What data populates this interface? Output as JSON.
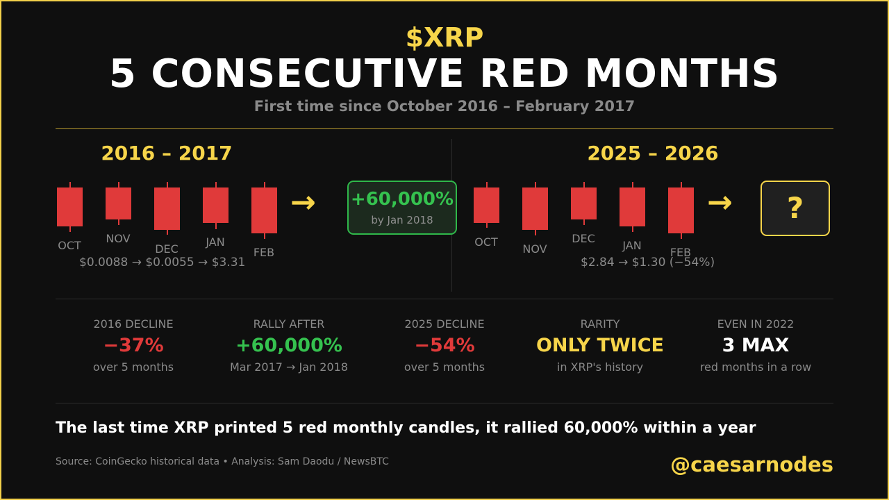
{
  "header": {
    "ticker": "$XRP",
    "title": "5 CONSECUTIVE RED MONTHS",
    "subtitle": "First time since October 2016 – February 2017"
  },
  "left_panel": {
    "period": "2016 – 2017",
    "months": [
      "OCT",
      "NOV",
      "DEC",
      "JAN",
      "FEB"
    ],
    "price_path": "$0.0088 → $0.0055 → $3.31",
    "result_value": "+60,000%",
    "result_caption": "by Jan 2018",
    "result_color": "#35c24f"
  },
  "right_panel": {
    "period": "2025 – 2026",
    "months": [
      "OCT",
      "NOV",
      "DEC",
      "JAN",
      "FEB"
    ],
    "price_path": "$2.84 → $1.30  (−54%)",
    "result_value": "?"
  },
  "arrow_glyph": "→",
  "stats": [
    {
      "label": "2016 DECLINE",
      "value": "−37%",
      "caption": "over 5 months",
      "tone": "red"
    },
    {
      "label": "RALLY AFTER",
      "value": "+60,000%",
      "caption": "Mar 2017 → Jan 2018",
      "tone": "green"
    },
    {
      "label": "2025 DECLINE",
      "value": "−54%",
      "caption": "over 5 months",
      "tone": "red"
    },
    {
      "label": "RARITY",
      "value": "ONLY TWICE",
      "caption": "in XRP's history",
      "tone": "yellow"
    },
    {
      "label": "EVEN IN 2022",
      "value": "3 MAX",
      "caption": "red months in a row",
      "tone": "white"
    }
  ],
  "footer": {
    "tagline": "The last time XRP printed 5 red monthly candles, it rallied 60,000% within a year",
    "source": "Source: CoinGecko historical data  •  Analysis: Sam Daodu / NewsBTC",
    "handle": "@caesarnodes"
  },
  "colors": {
    "background": "#0f0f0f",
    "accent": "#f7d54a",
    "candle_red": "#e03a3a",
    "gain_green": "#35c24f",
    "muted_text": "#8a8a8a"
  }
}
